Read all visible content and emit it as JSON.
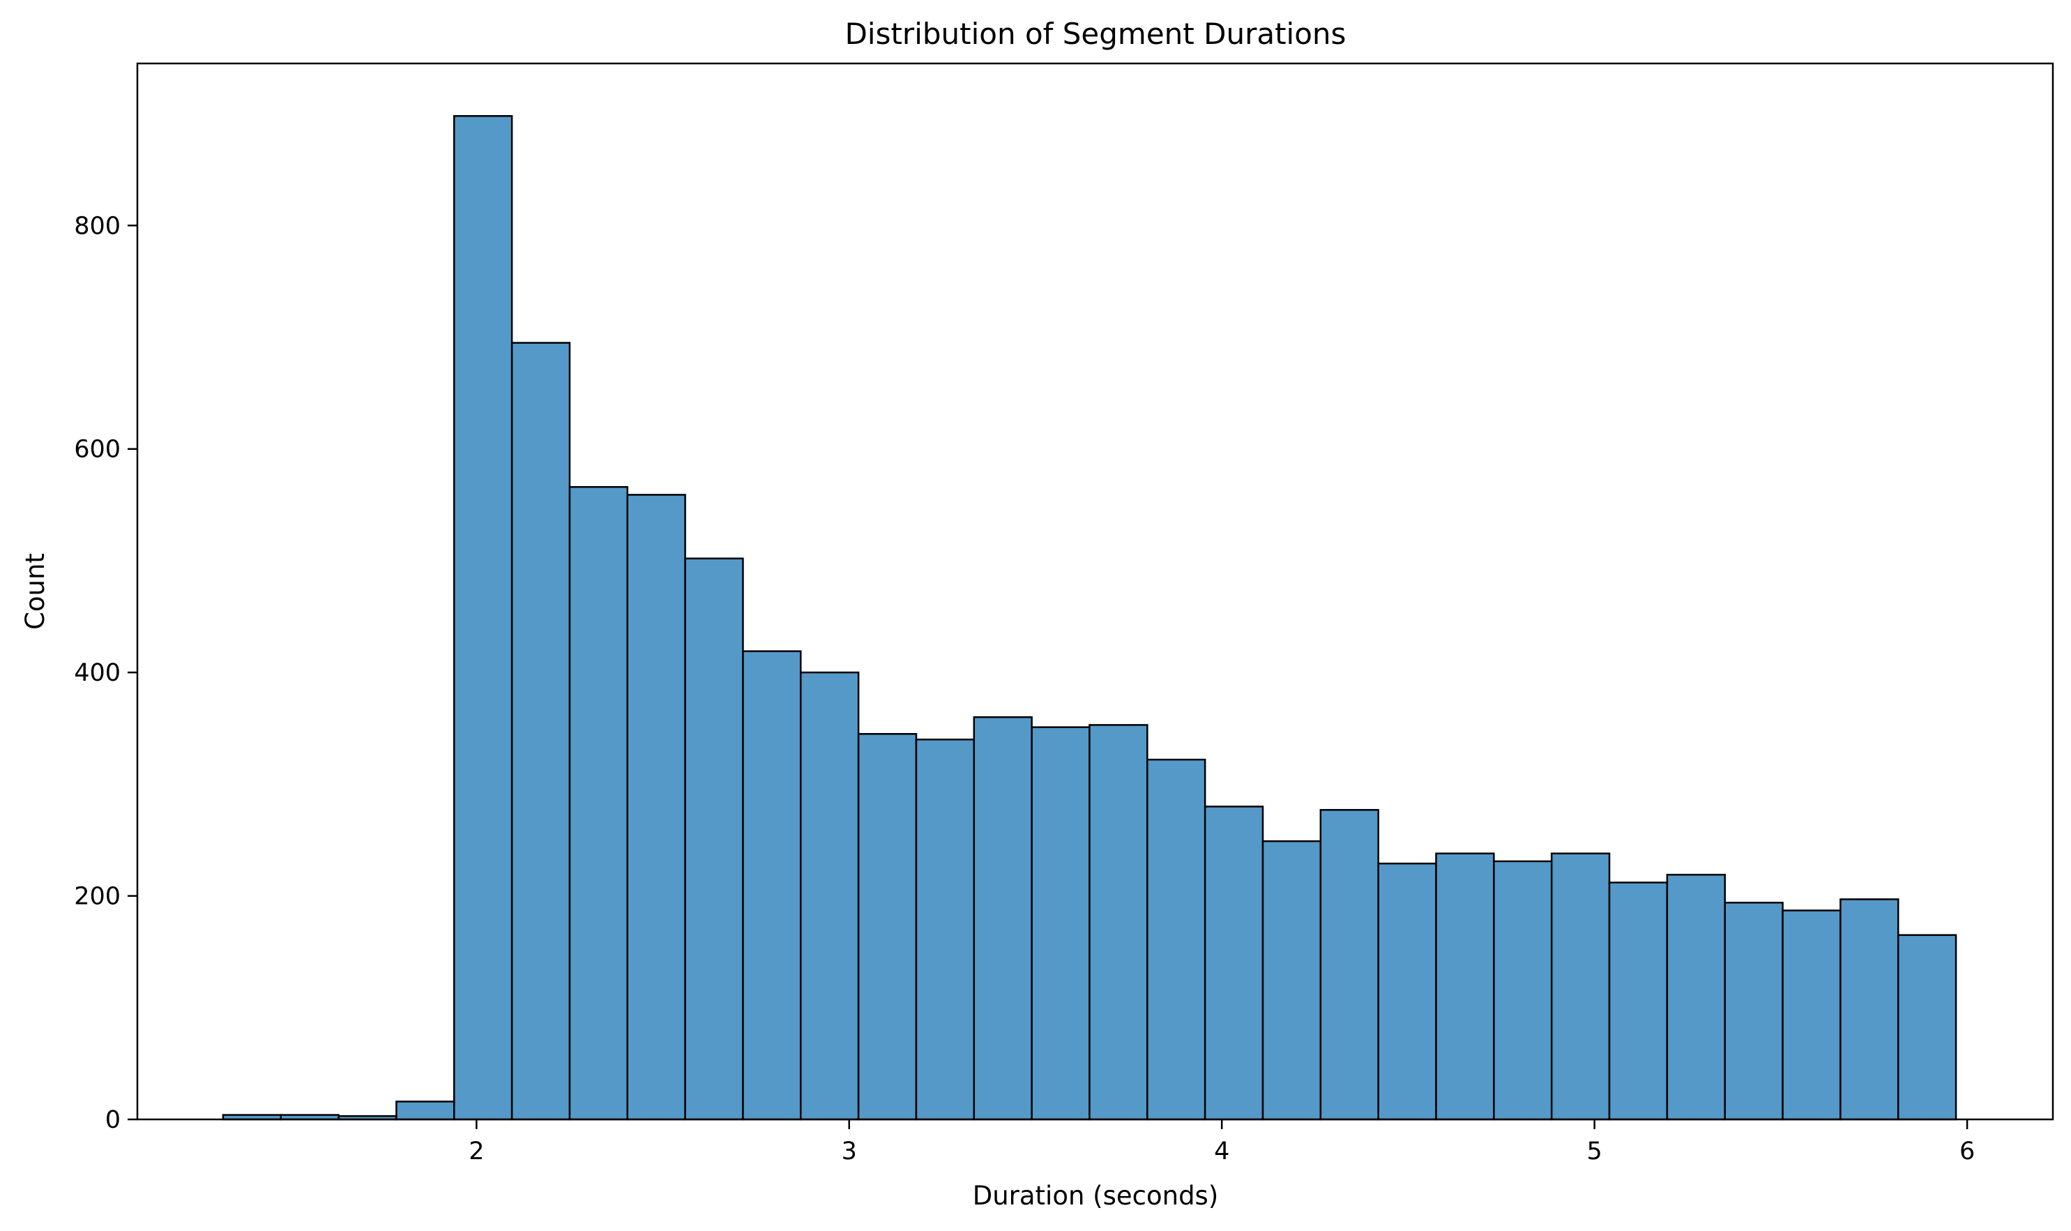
{
  "chart_data": {
    "type": "histogram",
    "title": "Distribution of Segment Durations",
    "xlabel": "Duration (seconds)",
    "ylabel": "Count",
    "xlim": [
      1.09,
      6.23
    ],
    "ylim": [
      0,
      945
    ],
    "xticks": [
      2,
      3,
      4,
      5,
      6
    ],
    "yticks": [
      0,
      200,
      400,
      600,
      800
    ],
    "grid": false,
    "legend": "none",
    "bar_color": "#5599c8",
    "edge_color": "#000000",
    "bins": [
      {
        "x0": 1.32,
        "x1": 1.475,
        "count": 4
      },
      {
        "x0": 1.475,
        "x1": 1.63,
        "count": 4
      },
      {
        "x0": 1.63,
        "x1": 1.785,
        "count": 3
      },
      {
        "x0": 1.785,
        "x1": 1.94,
        "count": 16
      },
      {
        "x0": 1.94,
        "x1": 2.095,
        "count": 898
      },
      {
        "x0": 2.095,
        "x1": 2.25,
        "count": 695
      },
      {
        "x0": 2.25,
        "x1": 2.405,
        "count": 566
      },
      {
        "x0": 2.405,
        "x1": 2.56,
        "count": 559
      },
      {
        "x0": 2.56,
        "x1": 2.715,
        "count": 502
      },
      {
        "x0": 2.715,
        "x1": 2.87,
        "count": 419
      },
      {
        "x0": 2.87,
        "x1": 3.025,
        "count": 400
      },
      {
        "x0": 3.025,
        "x1": 3.18,
        "count": 345
      },
      {
        "x0": 3.18,
        "x1": 3.335,
        "count": 340
      },
      {
        "x0": 3.335,
        "x1": 3.49,
        "count": 360
      },
      {
        "x0": 3.49,
        "x1": 3.645,
        "count": 351
      },
      {
        "x0": 3.645,
        "x1": 3.8,
        "count": 353
      },
      {
        "x0": 3.8,
        "x1": 3.955,
        "count": 322
      },
      {
        "x0": 3.955,
        "x1": 4.11,
        "count": 280
      },
      {
        "x0": 4.11,
        "x1": 4.265,
        "count": 249
      },
      {
        "x0": 4.265,
        "x1": 4.42,
        "count": 277
      },
      {
        "x0": 4.42,
        "x1": 4.575,
        "count": 229
      },
      {
        "x0": 4.575,
        "x1": 4.73,
        "count": 238
      },
      {
        "x0": 4.73,
        "x1": 4.885,
        "count": 231
      },
      {
        "x0": 4.885,
        "x1": 5.04,
        "count": 238
      },
      {
        "x0": 5.04,
        "x1": 5.195,
        "count": 212
      },
      {
        "x0": 5.195,
        "x1": 5.35,
        "count": 219
      },
      {
        "x0": 5.35,
        "x1": 5.505,
        "count": 194
      },
      {
        "x0": 5.505,
        "x1": 5.66,
        "count": 187
      },
      {
        "x0": 5.66,
        "x1": 5.815,
        "count": 197
      },
      {
        "x0": 5.815,
        "x1": 5.97,
        "count": 165
      }
    ]
  }
}
